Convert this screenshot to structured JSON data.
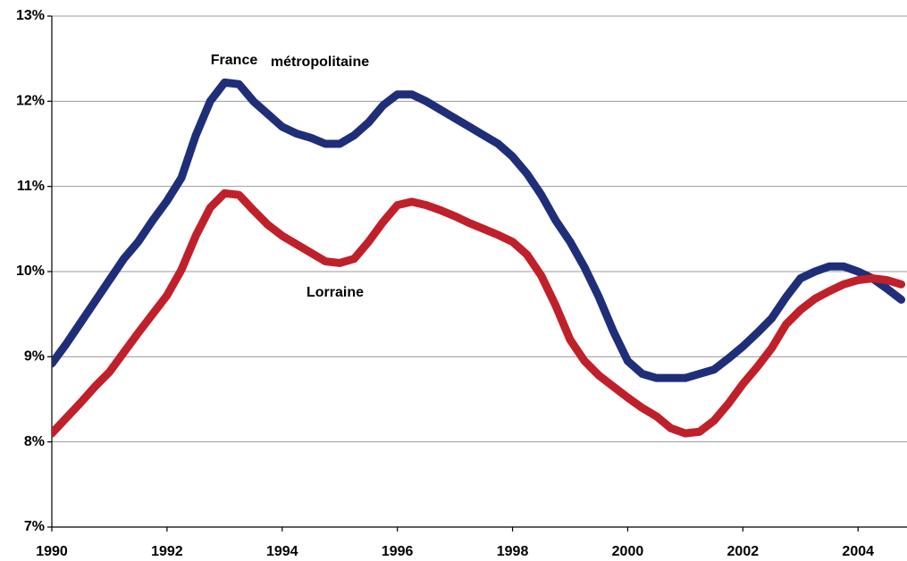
{
  "chart_data": {
    "type": "line",
    "annotations": [
      "France",
      "métropolitaine"
    ],
    "x": [
      1990,
      1990.25,
      1990.5,
      1990.75,
      1991,
      1991.25,
      1991.5,
      1991.75,
      1992,
      1992.25,
      1992.5,
      1992.75,
      1993,
      1993.25,
      1993.5,
      1993.75,
      1994,
      1994.25,
      1994.5,
      1994.75,
      1995,
      1995.25,
      1995.5,
      1995.75,
      1996,
      1996.25,
      1996.5,
      1996.75,
      1997,
      1997.25,
      1997.5,
      1997.75,
      1998,
      1998.25,
      1998.5,
      1998.75,
      1999,
      1999.25,
      1999.5,
      1999.75,
      2000,
      2000.25,
      2000.5,
      2000.75,
      2001,
      2001.25,
      2001.5,
      2001.75,
      2002,
      2002.25,
      2002.5,
      2002.75,
      2003,
      2003.25,
      2003.5,
      2003.75,
      2004,
      2004.25,
      2004.5,
      2004.75
    ],
    "series": [
      {
        "color": "#1f2e78",
        "values": [
          8.92,
          9.15,
          9.4,
          9.65,
          9.9,
          10.15,
          10.35,
          10.6,
          10.83,
          11.1,
          11.6,
          12.0,
          12.22,
          12.2,
          12.0,
          11.85,
          11.7,
          11.62,
          11.57,
          11.5,
          11.5,
          11.6,
          11.75,
          11.95,
          12.08,
          12.08,
          12.0,
          11.9,
          11.8,
          11.7,
          11.6,
          11.5,
          11.35,
          11.15,
          10.9,
          10.6,
          10.35,
          10.05,
          9.7,
          9.3,
          8.95,
          8.8,
          8.75,
          8.75,
          8.75,
          8.8,
          8.85,
          8.98,
          9.12,
          9.28,
          9.45,
          9.7,
          9.92,
          10.0,
          10.06,
          10.06,
          10.0,
          9.92,
          9.8,
          9.67
        ]
      },
      {
        "name": "Lorraine",
        "color": "#c0202a",
        "values": [
          8.1,
          8.28,
          8.46,
          8.65,
          8.82,
          9.05,
          9.28,
          9.5,
          9.72,
          10.02,
          10.42,
          10.75,
          10.92,
          10.9,
          10.72,
          10.55,
          10.42,
          10.32,
          10.22,
          10.12,
          10.1,
          10.15,
          10.35,
          10.58,
          10.78,
          10.82,
          10.78,
          10.72,
          10.65,
          10.57,
          10.5,
          10.43,
          10.35,
          10.2,
          9.95,
          9.6,
          9.2,
          8.95,
          8.78,
          8.65,
          8.52,
          8.4,
          8.3,
          8.16,
          8.1,
          8.12,
          8.25,
          8.45,
          8.68,
          8.88,
          9.1,
          9.38,
          9.55,
          9.68,
          9.77,
          9.85,
          9.9,
          9.92,
          9.9,
          9.85
        ]
      }
    ],
    "xlim": [
      1990,
      2004.85
    ],
    "xticks": [
      1990,
      1992,
      1994,
      1996,
      1998,
      2000,
      2002,
      2004
    ],
    "ylim": [
      7,
      13
    ],
    "yticks": [
      {
        "value": 7,
        "label": "7%"
      },
      {
        "value": 8,
        "label": "8%"
      },
      {
        "value": 9,
        "label": "9%"
      },
      {
        "value": 10,
        "label": "10%"
      },
      {
        "value": 11,
        "label": "11%"
      },
      {
        "value": 12,
        "label": "12%"
      },
      {
        "value": 13,
        "label": "13%"
      }
    ],
    "grid": true
  }
}
